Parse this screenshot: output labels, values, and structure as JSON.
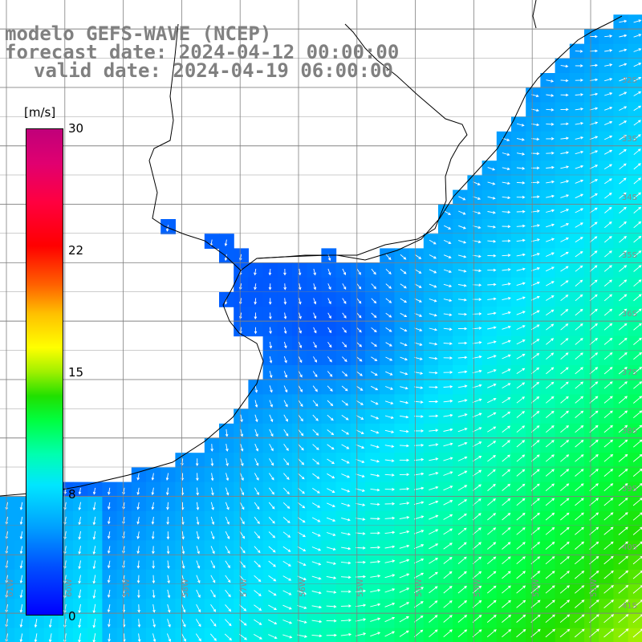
{
  "title": {
    "line1": "modelo GEFS-WAVE (NCEP)",
    "line2": "forecast date: 2024-04-12 00:00:00",
    "line3": "valid date: 2024-04-19 06:00:00"
  },
  "legend": {
    "unit": "[m/s]",
    "ticks": [
      "30",
      "22",
      "15",
      "8",
      "0"
    ],
    "tick_values": [
      30,
      22,
      15,
      8,
      0
    ],
    "range": [
      0,
      30
    ],
    "colors": [
      "#0000ff",
      "#00a0ff",
      "#00e6ff",
      "#00ff40",
      "#ffff00",
      "#ff6000",
      "#ff0000",
      "#c0007a"
    ]
  },
  "axes": {
    "lat_labels": [
      "32S",
      "33S",
      "34S",
      "35S",
      "36S",
      "37S",
      "38S",
      "39S",
      "40S",
      "41S"
    ],
    "lon_labels": [
      "61W",
      "60W",
      "59W",
      "58W",
      "57W",
      "56W",
      "55W",
      "54W",
      "53W",
      "52W",
      "51W"
    ],
    "lon_range_deg": [
      -61.8,
      -50.5
    ],
    "lat_range_deg": [
      -30.9,
      -41.9
    ],
    "grid": true
  },
  "colors": {
    "land": "#ffffff",
    "coast": "#000000",
    "grid": "#808080",
    "title": "#808080",
    "arrows": "#ffffff"
  }
}
